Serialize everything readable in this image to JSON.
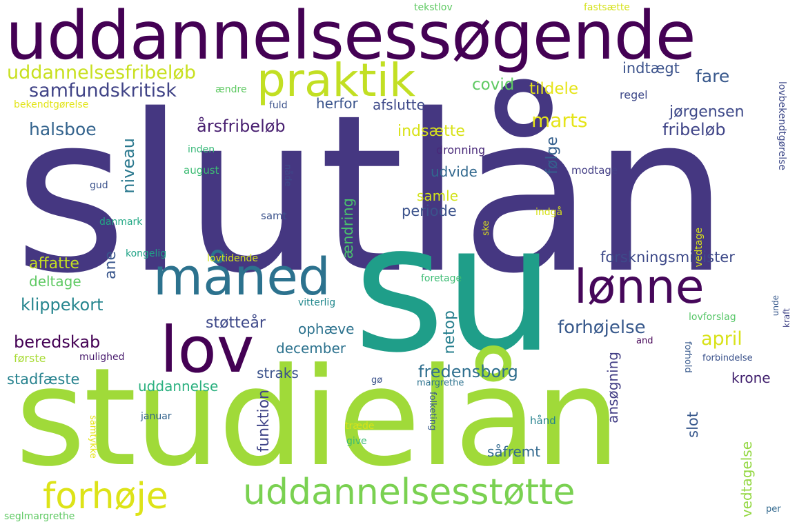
{
  "words": [
    {
      "text": "slutlån",
      "color": "#453781"
    },
    {
      "text": "su",
      "color": "#1f9e89"
    },
    {
      "text": "studielån",
      "color": "#a0da39"
    },
    {
      "text": "uddannelsessøgende",
      "color": "#440154"
    },
    {
      "text": "praktik",
      "color": "#c2df23"
    },
    {
      "text": "måned",
      "color": "#2c728e"
    },
    {
      "text": "lønne",
      "color": "#46075a"
    },
    {
      "text": "lov",
      "color": "#440154"
    },
    {
      "text": "uddannelsesstøtte",
      "color": "#7ad151"
    },
    {
      "text": "forhøje",
      "color": "#dde318"
    },
    {
      "text": "uddannelsesfribeløb",
      "color": "#c8e020"
    },
    {
      "text": "samfundskritisk",
      "color": "#414487"
    },
    {
      "text": "halsboe",
      "color": "#33638d"
    },
    {
      "text": "årsfribeløb",
      "color": "#481f70"
    },
    {
      "text": "niveau",
      "color": "#2a788e"
    },
    {
      "text": "covid",
      "color": "#5ec962"
    },
    {
      "text": "tildele",
      "color": "#e5e419"
    },
    {
      "text": "marts",
      "color": "#e5e419"
    },
    {
      "text": "indsætte",
      "color": "#d8e219"
    },
    {
      "text": "indtægt",
      "color": "#3b528b"
    },
    {
      "text": "fare",
      "color": "#38588c"
    },
    {
      "text": "jørgensen",
      "color": "#3e4989"
    },
    {
      "text": "fribeløb",
      "color": "#404588"
    },
    {
      "text": "herfor",
      "color": "#3a548c"
    },
    {
      "text": "afslutte",
      "color": "#3e4989"
    },
    {
      "text": "følge",
      "color": "#35608d"
    },
    {
      "text": "udvide",
      "color": "#31688e"
    },
    {
      "text": "samle",
      "color": "#d2e21b"
    },
    {
      "text": "periode",
      "color": "#3b528b"
    },
    {
      "text": "ændring",
      "color": "#4ac16d"
    },
    {
      "text": "klippekort",
      "color": "#25858e"
    },
    {
      "text": "affatte",
      "color": "#c5e021"
    },
    {
      "text": "deltage",
      "color": "#5ec962"
    },
    {
      "text": "ane",
      "color": "#39568c"
    },
    {
      "text": "forskningsminister",
      "color": "#3e4a89"
    },
    {
      "text": "støtteår",
      "color": "#3e4989"
    },
    {
      "text": "beredskab",
      "color": "#440154"
    },
    {
      "text": "forhøjelse",
      "color": "#38598c"
    },
    {
      "text": "netop",
      "color": "#277f8e"
    },
    {
      "text": "april",
      "color": "#d8e219"
    },
    {
      "text": "ophæve",
      "color": "#2c728e"
    },
    {
      "text": "december",
      "color": "#2c728e"
    },
    {
      "text": "ansøgning",
      "color": "#433e85"
    },
    {
      "text": "slot",
      "color": "#38588c"
    },
    {
      "text": "fredensborg",
      "color": "#2e6e8e"
    },
    {
      "text": "krone",
      "color": "#3f1e6c"
    },
    {
      "text": "første",
      "color": "#a8db34"
    },
    {
      "text": "mulighed",
      "color": "#481b6d"
    },
    {
      "text": "stadfæste",
      "color": "#26828e"
    },
    {
      "text": "straks",
      "color": "#3b528b"
    },
    {
      "text": "uddannelse",
      "color": "#2ab07f"
    },
    {
      "text": "funktion",
      "color": "#404588"
    },
    {
      "text": "vedtagelse",
      "color": "#93d741"
    },
    {
      "text": "såfremt",
      "color": "#31688e"
    },
    {
      "text": "tekstlov",
      "color": "#5ec962"
    },
    {
      "text": "fastsætte",
      "color": "#d5e21a"
    },
    {
      "text": "regel",
      "color": "#3e4989"
    },
    {
      "text": "lovbekendtgørelse",
      "color": "#3e4989"
    },
    {
      "text": "bekendtgørelse",
      "color": "#e2e418"
    },
    {
      "text": "ændre",
      "color": "#5ec962"
    },
    {
      "text": "fuld",
      "color": "#3b528b"
    },
    {
      "text": "inden",
      "color": "#37b878"
    },
    {
      "text": "august",
      "color": "#3dbc74"
    },
    {
      "text": "nåde",
      "color": "#3e4989"
    },
    {
      "text": "dronning",
      "color": "#482878"
    },
    {
      "text": "modtage",
      "color": "#433e85"
    },
    {
      "text": "gud",
      "color": "#3b528b"
    },
    {
      "text": "vedtage",
      "color": "#d8e219"
    },
    {
      "text": "danmark",
      "color": "#22a884"
    },
    {
      "text": "samt",
      "color": "#3b528b"
    },
    {
      "text": "ske",
      "color": "#dde318"
    },
    {
      "text": "indgå",
      "color": "#d8e219"
    },
    {
      "text": "kongelig",
      "color": "#20a386"
    },
    {
      "text": "lovtidende",
      "color": "#d2e21b"
    },
    {
      "text": "foretage",
      "color": "#3dbc74"
    },
    {
      "text": "vitterlig",
      "color": "#23898e"
    },
    {
      "text": "unde",
      "color": "#38598c"
    },
    {
      "text": "kraft",
      "color": "#414487"
    },
    {
      "text": "lovforslag",
      "color": "#56c667"
    },
    {
      "text": "and",
      "color": "#440154"
    },
    {
      "text": "forhold",
      "color": "#38598c"
    },
    {
      "text": "forbindelse",
      "color": "#3b528b"
    },
    {
      "text": "gø",
      "color": "#3b528b"
    },
    {
      "text": "margrethe",
      "color": "#2c728e"
    },
    {
      "text": "januar",
      "color": "#33638d"
    },
    {
      "text": "folketing",
      "color": "#38598c"
    },
    {
      "text": "træde",
      "color": "#d8e219"
    },
    {
      "text": "give",
      "color": "#3dbc74"
    },
    {
      "text": "hånd",
      "color": "#26828e"
    },
    {
      "text": "samtykke",
      "color": "#e5e419"
    },
    {
      "text": "seglmargrethe",
      "color": "#5ec962"
    },
    {
      "text": "per",
      "color": "#31688e"
    }
  ]
}
